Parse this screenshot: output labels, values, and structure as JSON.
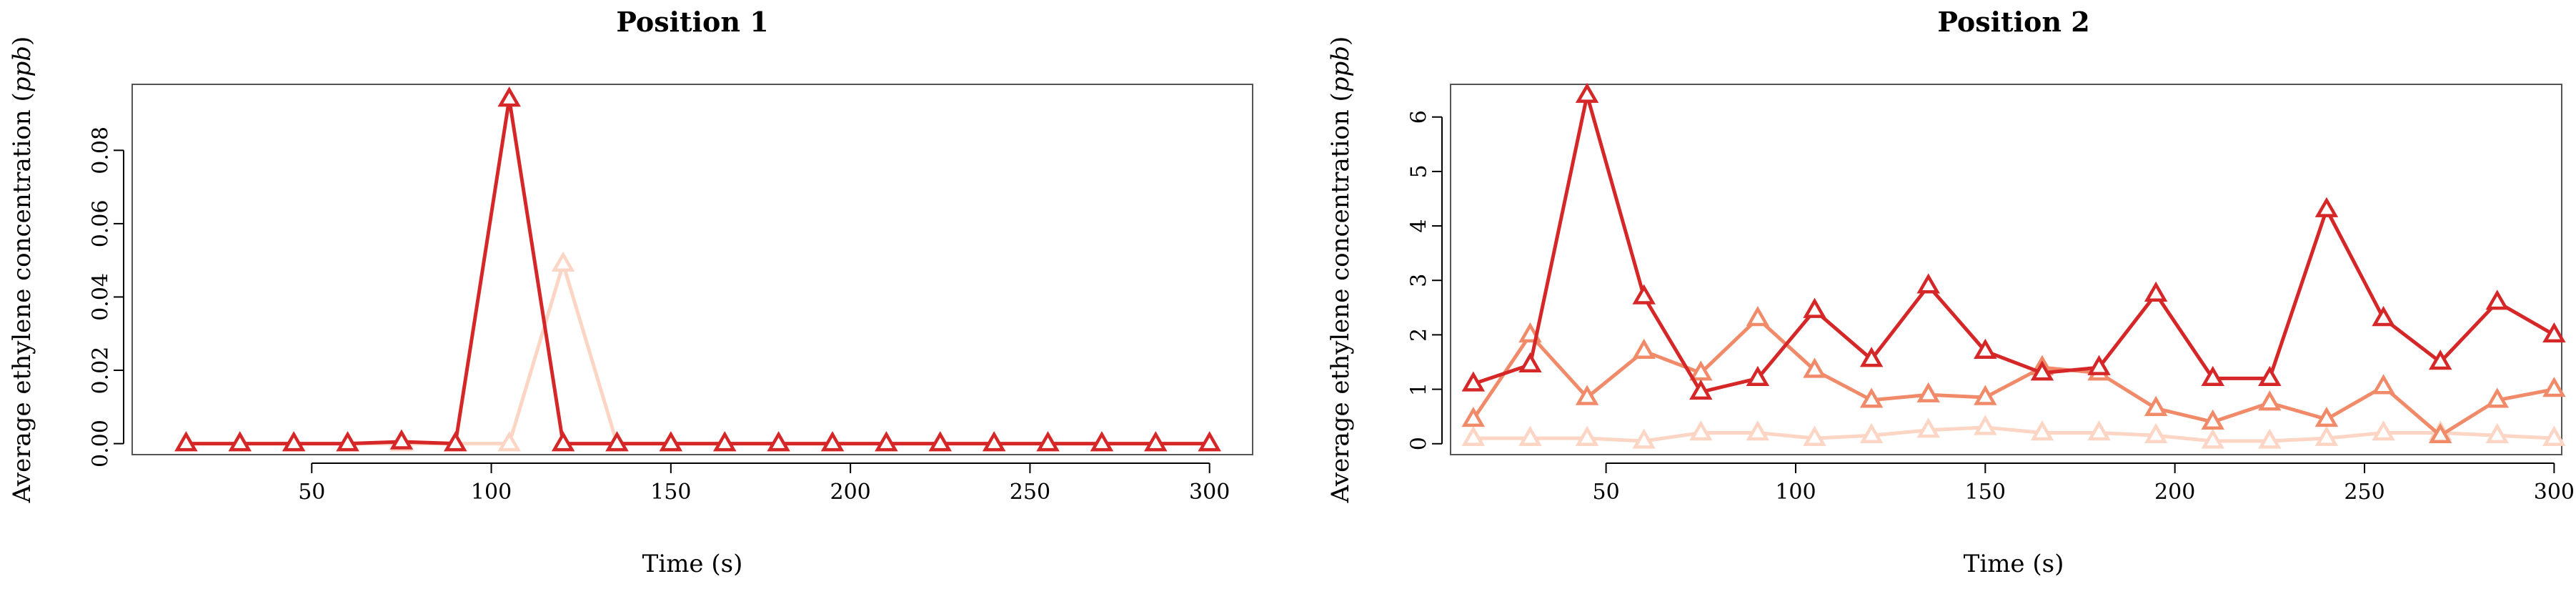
{
  "chart_data": [
    {
      "type": "line",
      "title": "Position 1",
      "xlabel": "Time (s)",
      "ylabel_prefix": "Average ethylene concentration (",
      "ylabel_unit": "ppb",
      "ylabel_suffix": ")",
      "xlim": [
        0,
        312
      ],
      "ylim": [
        -0.003,
        0.098
      ],
      "xticks": [
        50,
        100,
        150,
        200,
        250,
        300
      ],
      "yticks": [
        0.0,
        0.02,
        0.04,
        0.06,
        0.08
      ],
      "ytick_labels": [
        "0.00",
        "0.02",
        "0.04",
        "0.06",
        "0.08"
      ],
      "x": [
        15,
        30,
        45,
        60,
        75,
        90,
        105,
        120,
        135,
        150,
        165,
        180,
        195,
        210,
        225,
        240,
        255,
        270,
        285,
        300
      ],
      "series": [
        {
          "color": "#fcd5c4",
          "values": [
            0,
            0,
            0,
            0,
            0,
            0,
            0,
            0.049,
            0,
            0,
            0,
            0,
            0,
            0,
            0,
            0,
            0,
            0,
            0,
            0
          ]
        },
        {
          "color": "#d62728",
          "values": [
            0,
            0,
            0,
            0,
            0.0005,
            0,
            0.094,
            0,
            0,
            0,
            0,
            0,
            0,
            0,
            0,
            0,
            0,
            0,
            0,
            0
          ]
        }
      ]
    },
    {
      "type": "line",
      "title": "Position 2",
      "xlabel": "Time (s)",
      "ylabel_prefix": "Average ethylene concentration (",
      "ylabel_unit": "ppb",
      "ylabel_suffix": ")",
      "xlim": [
        9,
        302
      ],
      "ylim": [
        -0.2,
        6.6
      ],
      "xticks": [
        50,
        100,
        150,
        200,
        250,
        300
      ],
      "yticks": [
        0,
        1,
        2,
        3,
        4,
        5,
        6
      ],
      "ytick_labels": [
        "0",
        "1",
        "2",
        "3",
        "4",
        "5",
        "6"
      ],
      "x": [
        15,
        30,
        45,
        60,
        75,
        90,
        105,
        120,
        135,
        150,
        165,
        180,
        195,
        210,
        225,
        240,
        255,
        270,
        285,
        300
      ],
      "series": [
        {
          "color": "#fcd5c4",
          "values": [
            0.1,
            0.1,
            0.1,
            0.05,
            0.2,
            0.2,
            0.1,
            0.15,
            0.25,
            0.3,
            0.2,
            0.2,
            0.15,
            0.05,
            0.05,
            0.1,
            0.2,
            0.2,
            0.15,
            0.1
          ]
        },
        {
          "color": "#f08a68",
          "values": [
            0.45,
            2.0,
            0.85,
            1.7,
            1.3,
            2.3,
            1.35,
            0.8,
            0.9,
            0.85,
            1.4,
            1.3,
            0.65,
            0.4,
            0.75,
            0.45,
            1.05,
            0.15,
            0.8,
            1.0
          ]
        },
        {
          "color": "#d62728",
          "values": [
            1.1,
            1.45,
            6.4,
            2.7,
            0.95,
            1.2,
            2.45,
            1.55,
            2.9,
            1.7,
            1.3,
            1.4,
            2.75,
            1.2,
            1.2,
            4.3,
            2.3,
            1.5,
            2.6,
            2.0
          ]
        }
      ]
    }
  ]
}
